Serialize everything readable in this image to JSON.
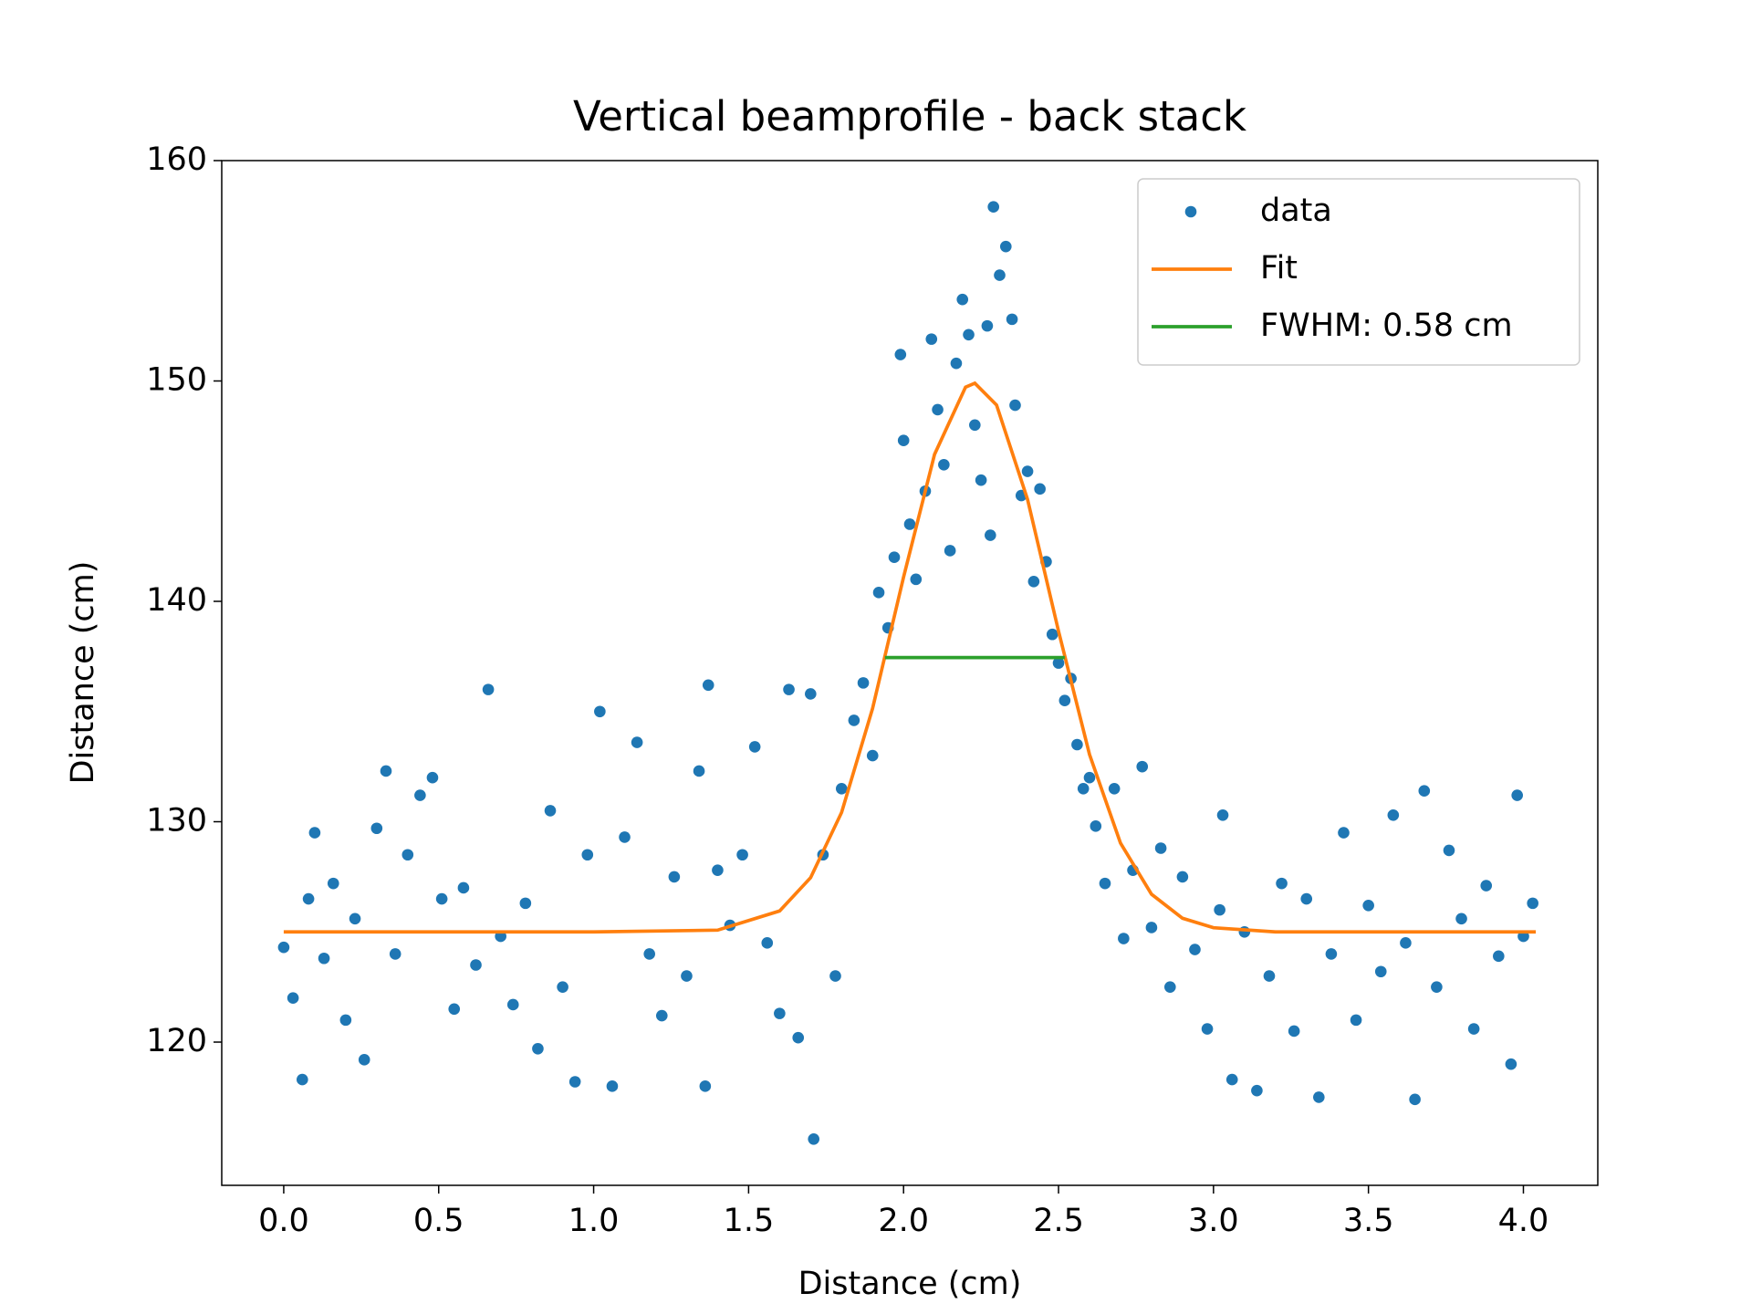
{
  "chart_data": {
    "type": "scatter",
    "title": "Vertical beamprofile - back stack",
    "x_label": "Distance (cm)",
    "y_label": "Distance (cm)",
    "xlim": [
      -0.2,
      4.24
    ],
    "ylim": [
      113.5,
      160
    ],
    "xticks": [
      {
        "value": 0,
        "label": "0.0"
      },
      {
        "value": 0.5,
        "label": "0.5"
      },
      {
        "value": 1,
        "label": "1.0"
      },
      {
        "value": 1.5,
        "label": "1.5"
      },
      {
        "value": 2,
        "label": "2.0"
      },
      {
        "value": 2.5,
        "label": "2.5"
      },
      {
        "value": 3,
        "label": "3.0"
      },
      {
        "value": 3.5,
        "label": "3.5"
      },
      {
        "value": 4,
        "label": "4.0"
      }
    ],
    "yticks": [
      120,
      130,
      140,
      150,
      160
    ],
    "grid": false,
    "legend": "upper right",
    "series": [
      {
        "name": "data",
        "type": "scatter",
        "color": "#1f77b4",
        "x": [
          0.0,
          0.03,
          0.06,
          0.08,
          0.1,
          0.13,
          0.16,
          0.2,
          0.23,
          0.26,
          0.3,
          0.33,
          0.36,
          0.4,
          0.44,
          0.48,
          0.51,
          0.55,
          0.58,
          0.62,
          0.66,
          0.7,
          0.74,
          0.78,
          0.82,
          0.86,
          0.9,
          0.94,
          0.98,
          1.02,
          1.06,
          1.1,
          1.14,
          1.18,
          1.22,
          1.26,
          1.3,
          1.34,
          1.37,
          1.36,
          1.4,
          1.44,
          1.48,
          1.52,
          1.56,
          1.6,
          1.63,
          1.66,
          1.7,
          1.71,
          1.74,
          1.78,
          1.8,
          1.84,
          1.87,
          1.9,
          1.92,
          1.95,
          1.97,
          1.99,
          2.0,
          2.02,
          2.04,
          2.07,
          2.09,
          2.11,
          2.13,
          2.15,
          2.17,
          2.19,
          2.21,
          2.23,
          2.25,
          2.27,
          2.28,
          2.29,
          2.31,
          2.33,
          2.35,
          2.36,
          2.38,
          2.4,
          2.42,
          2.44,
          2.46,
          2.48,
          2.5,
          2.52,
          2.54,
          2.56,
          2.58,
          2.6,
          2.62,
          2.65,
          2.68,
          2.71,
          2.74,
          2.77,
          2.8,
          2.83,
          2.86,
          2.9,
          2.94,
          2.98,
          3.02,
          3.03,
          3.06,
          3.1,
          3.14,
          3.18,
          3.22,
          3.26,
          3.3,
          3.34,
          3.38,
          3.42,
          3.46,
          3.5,
          3.54,
          3.58,
          3.62,
          3.65,
          3.68,
          3.72,
          3.76,
          3.8,
          3.84,
          3.88,
          3.92,
          3.96,
          3.98,
          4.0,
          4.03
        ],
        "values": [
          124.3,
          122.0,
          118.3,
          126.5,
          129.5,
          123.8,
          127.2,
          121.0,
          125.6,
          119.2,
          129.7,
          132.3,
          124.0,
          128.5,
          131.2,
          132.0,
          126.5,
          121.5,
          127.0,
          123.5,
          136.0,
          124.8,
          121.7,
          126.3,
          119.7,
          130.5,
          122.5,
          118.2,
          128.5,
          135.0,
          118.0,
          129.3,
          133.6,
          124.0,
          121.2,
          127.5,
          123.0,
          132.3,
          136.2,
          118.0,
          127.8,
          125.3,
          128.5,
          133.4,
          124.5,
          121.3,
          136.0,
          120.2,
          135.8,
          115.6,
          128.5,
          123.0,
          131.5,
          134.6,
          136.3,
          133.0,
          140.4,
          138.8,
          142.0,
          151.2,
          147.3,
          143.5,
          141.0,
          145.0,
          151.9,
          148.7,
          146.2,
          142.3,
          150.8,
          153.7,
          152.1,
          148.0,
          145.5,
          152.5,
          143.0,
          157.9,
          154.8,
          156.1,
          152.8,
          148.9,
          144.8,
          145.9,
          140.9,
          145.1,
          141.8,
          138.5,
          137.2,
          135.5,
          136.5,
          133.5,
          131.5,
          132.0,
          129.8,
          127.2,
          131.5,
          124.7,
          127.8,
          132.5,
          125.2,
          128.8,
          122.5,
          127.5,
          124.2,
          120.6,
          126.0,
          130.3,
          118.3,
          125.0,
          117.8,
          123.0,
          127.2,
          120.5,
          126.5,
          117.5,
          124.0,
          129.5,
          121.0,
          126.2,
          123.2,
          130.3,
          124.5,
          117.4,
          131.4,
          122.5,
          128.7,
          125.6,
          120.6,
          127.1,
          123.9,
          119.0,
          131.2,
          124.8,
          126.3
        ]
      },
      {
        "name": "Fit",
        "type": "line",
        "color": "#ff7f0e",
        "x": [
          0,
          1.0,
          1.4,
          1.6,
          1.7,
          1.8,
          1.9,
          2.0,
          2.1,
          2.2,
          2.23,
          2.3,
          2.4,
          2.5,
          2.6,
          2.7,
          2.8,
          2.9,
          3.0,
          3.2,
          4.04
        ],
        "values": [
          125.0,
          125.0,
          125.08,
          125.95,
          127.46,
          130.42,
          135.14,
          141.1,
          146.67,
          149.72,
          149.9,
          148.91,
          144.63,
          138.65,
          133.05,
          129.03,
          126.71,
          125.62,
          125.19,
          125.0,
          125.0
        ]
      },
      {
        "name": "FWHM: 0.58 cm",
        "type": "line",
        "color": "#2ca02c",
        "x": [
          1.94,
          2.52
        ],
        "values": [
          137.45,
          137.45
        ]
      }
    ]
  }
}
